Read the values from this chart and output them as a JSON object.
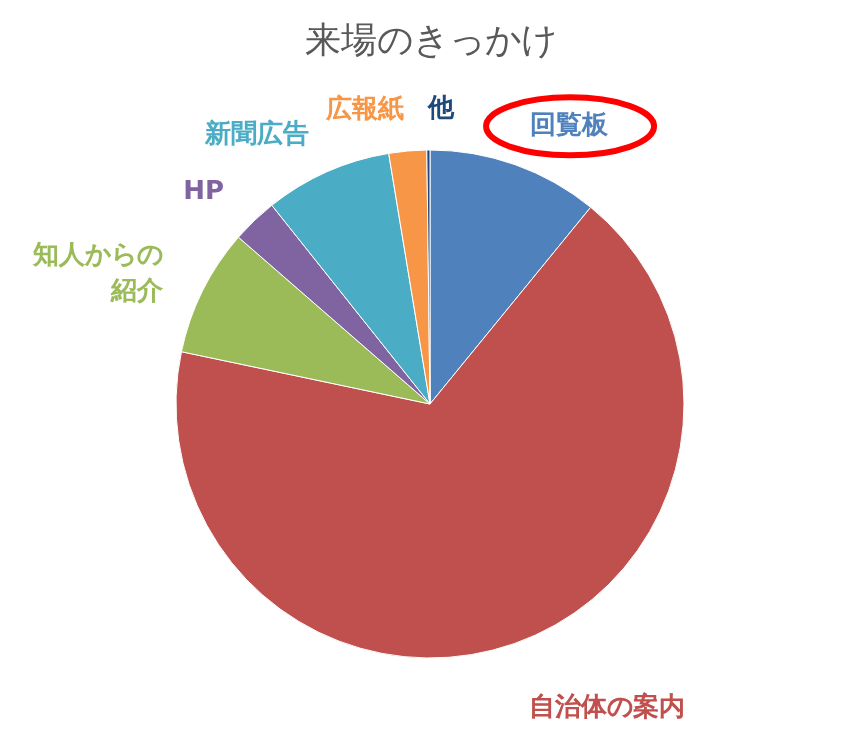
{
  "chart_data": {
    "type": "pie",
    "title": "来場のきっかけ",
    "categories": [
      "回覧板",
      "自治体の案内",
      "知人からの紹介",
      "HP",
      "新聞広告",
      "広報紙",
      "他"
    ],
    "values": [
      10.9,
      67.4,
      8.1,
      2.9,
      8.1,
      2.4,
      0.2
    ],
    "colors": [
      "#4f81bd",
      "#c0504d",
      "#9bbb59",
      "#8064a2",
      "#4bacc6",
      "#f79646",
      "#1f497d"
    ],
    "legend": false
  }
}
